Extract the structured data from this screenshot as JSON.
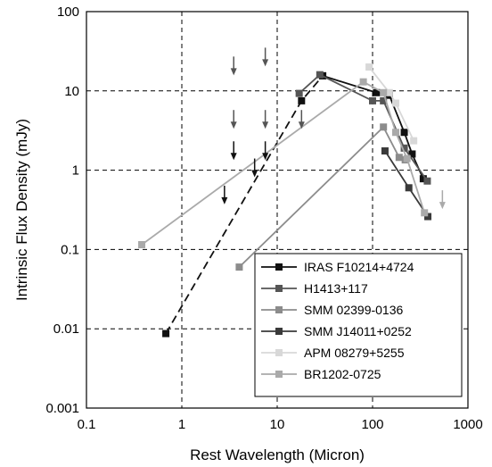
{
  "chart_data": {
    "type": "scatter",
    "title": "",
    "xlabel": "Rest Wavelength (Micron)",
    "ylabel": "Intrinsic Flux Density (mJy)",
    "xscale": "log",
    "yscale": "log",
    "xlim": [
      0.1,
      1000
    ],
    "ylim": [
      0.001,
      100
    ],
    "x_ticks": [
      "0.1",
      "1",
      "10",
      "100",
      "1000"
    ],
    "y_ticks": [
      "0.001",
      "0.01",
      "0.1",
      "1",
      "10",
      "100"
    ],
    "grid": true,
    "legend_position": "bottom-right",
    "series": [
      {
        "name": "IRAS F10214+4724",
        "color": "#111111",
        "line_style": "dashed",
        "x": [
          0.68,
          18,
          30
        ],
        "y": [
          0.0087,
          7.5,
          15.5
        ],
        "upper_limits": []
      },
      {
        "name": "IRAS F10214+4724",
        "color": "#111111",
        "line_style": "solid",
        "legend": false,
        "x": [
          30,
          110,
          150,
          215,
          260,
          340
        ],
        "y": [
          15.5,
          9.5,
          8.8,
          3.0,
          1.6,
          0.78
        ],
        "upper_limits": [
          {
            "x": 2.8,
            "y": 0.4
          },
          {
            "x": 3.5,
            "y": 1.45
          },
          {
            "x": 5.8,
            "y": 0.88
          },
          {
            "x": 7.5,
            "y": 1.45
          }
        ]
      },
      {
        "name": "H1413+117",
        "color": "#555555",
        "line_style": "solid",
        "x": [
          17,
          28,
          100,
          130,
          215,
          375
        ],
        "y": [
          9.3,
          16,
          7.5,
          7.5,
          1.9,
          0.73
        ],
        "upper_limits": [
          {
            "x": 3.5,
            "y": 17
          },
          {
            "x": 7.5,
            "y": 22
          },
          {
            "x": 3.5,
            "y": 3.6
          },
          {
            "x": 7.5,
            "y": 3.6
          },
          {
            "x": 18,
            "y": 3.6
          }
        ]
      },
      {
        "name": "SMM 02399-0136",
        "color": "#8c8c8c",
        "line_style": "solid",
        "x": [
          4,
          130,
          190,
          220
        ],
        "y": [
          0.06,
          3.5,
          1.45,
          1.35
        ],
        "upper_limits": []
      },
      {
        "name": "SMM J14011+0252",
        "color": "#3a3a3a",
        "line_style": "solid",
        "x": [
          135,
          240,
          380
        ],
        "y": [
          1.75,
          0.6,
          0.26
        ],
        "upper_limits": []
      },
      {
        "name": "APM 08279+5255",
        "color": "#d8d8d8",
        "line_style": "solid",
        "x": [
          92,
          150,
          175,
          270
        ],
        "y": [
          20,
          9.5,
          7.0,
          2.35
        ],
        "upper_limits": []
      },
      {
        "name": "BR1202-0725",
        "color": "#aaaaaa",
        "line_style": "solid",
        "x": [
          0.38,
          80,
          130,
          175,
          230,
          350
        ],
        "y": [
          0.115,
          13,
          9.5,
          3.0,
          1.4,
          0.29
        ],
        "upper_limits": [
          {
            "x": 540,
            "y": 0.35
          }
        ]
      }
    ]
  }
}
